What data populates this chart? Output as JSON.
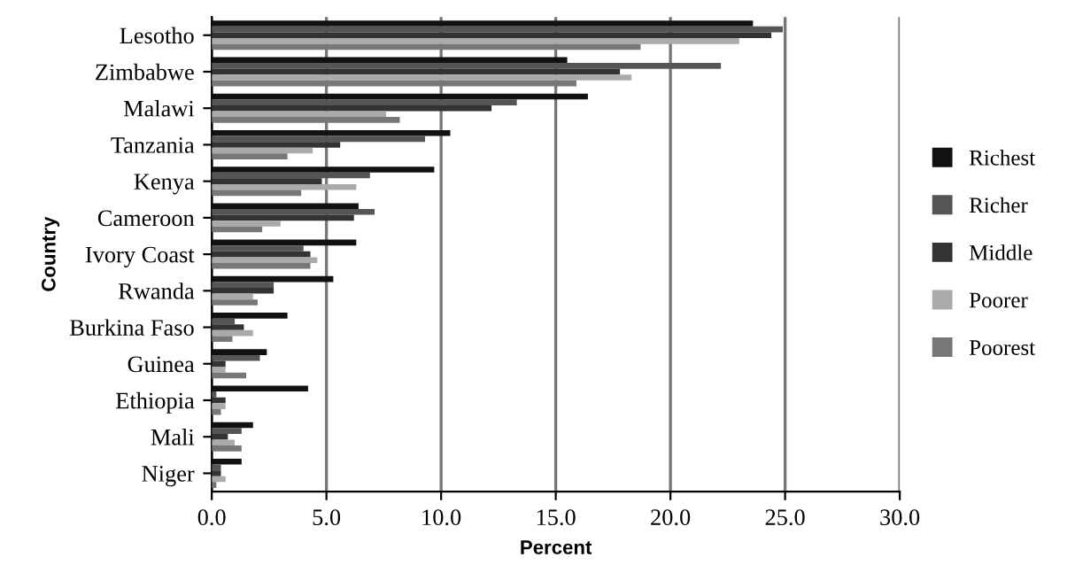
{
  "chart_data": {
    "type": "bar",
    "orientation": "horizontal",
    "xlabel": "Percent",
    "ylabel": "Country",
    "categories": [
      "Lesotho",
      "Zimbabwe",
      "Malawi",
      "Tanzania",
      "Kenya",
      "Cameroon",
      "Ivory Coast",
      "Rwanda",
      "Burkina Faso",
      "Guinea",
      "Ethiopia",
      "Mali",
      "Niger"
    ],
    "series": [
      {
        "name": "Richest",
        "color": "#111111",
        "values": [
          23.6,
          15.5,
          16.4,
          10.4,
          9.7,
          6.4,
          6.3,
          5.3,
          3.3,
          2.4,
          4.2,
          1.8,
          1.3
        ]
      },
      {
        "name": "Richer",
        "color": "#555555",
        "values": [
          24.9,
          22.2,
          13.3,
          9.3,
          6.9,
          7.1,
          4.0,
          2.7,
          1.0,
          2.1,
          0.2,
          1.3,
          0.4
        ]
      },
      {
        "name": "Middle",
        "color": "#333333",
        "values": [
          24.4,
          17.8,
          12.2,
          5.6,
          4.8,
          6.2,
          4.3,
          2.7,
          1.4,
          0.6,
          0.6,
          0.7,
          0.4
        ]
      },
      {
        "name": "Poorer",
        "color": "#aaaaaa",
        "values": [
          23.0,
          18.3,
          7.6,
          4.4,
          6.3,
          3.0,
          4.6,
          1.8,
          1.8,
          0.6,
          0.6,
          1.0,
          0.6
        ]
      },
      {
        "name": "Poorest",
        "color": "#777777",
        "values": [
          18.7,
          15.9,
          8.2,
          3.3,
          3.9,
          2.2,
          4.3,
          2.0,
          0.9,
          1.5,
          0.4,
          1.3,
          0.2
        ]
      }
    ],
    "xlim": [
      0,
      30
    ],
    "xticks": [
      {
        "value": 0,
        "label": "0.0"
      },
      {
        "value": 5,
        "label": "5.0"
      },
      {
        "value": 10,
        "label": "10.0"
      },
      {
        "value": 15,
        "label": "15.0"
      },
      {
        "value": 20,
        "label": "20.0"
      },
      {
        "value": 25,
        "label": "25.0"
      },
      {
        "value": 30,
        "label": "30.0"
      }
    ],
    "grid": "x",
    "legend": "right"
  }
}
